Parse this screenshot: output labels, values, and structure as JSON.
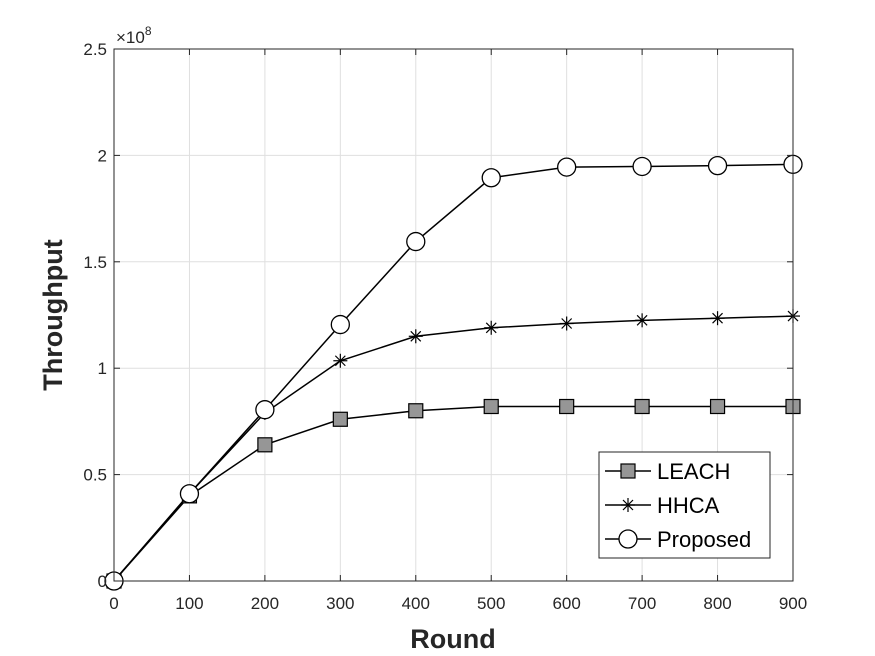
{
  "chart_data": {
    "type": "line",
    "title": "",
    "xlabel": "Round",
    "ylabel": "Throughput",
    "x": [
      0,
      100,
      200,
      300,
      400,
      500,
      600,
      700,
      800,
      900
    ],
    "xlim": [
      0,
      900
    ],
    "ylim": [
      0,
      2.5
    ],
    "y_multiplier_label": "×10",
    "y_multiplier_exp": "8",
    "x_ticks": [
      "0",
      "100",
      "200",
      "300",
      "400",
      "500",
      "600",
      "700",
      "800",
      "900"
    ],
    "y_ticks": [
      "0",
      "0.5",
      "1",
      "1.5",
      "2",
      "2.5"
    ],
    "y_tick_values": [
      0,
      0.5,
      1,
      1.5,
      2,
      2.5
    ],
    "grid": true,
    "legend_position": "bottom-right",
    "series": [
      {
        "name": "LEACH",
        "marker": "square",
        "values": [
          0,
          0.4,
          0.64,
          0.76,
          0.8,
          0.82,
          0.82,
          0.82,
          0.82,
          0.82
        ]
      },
      {
        "name": "HHCA",
        "marker": "asterisk",
        "values": [
          0,
          0.41,
          0.79,
          1.035,
          1.15,
          1.19,
          1.21,
          1.225,
          1.235,
          1.245
        ]
      },
      {
        "name": "Proposed",
        "marker": "circle",
        "values": [
          0,
          0.41,
          0.805,
          1.205,
          1.595,
          1.895,
          1.945,
          1.948,
          1.952,
          1.958
        ]
      }
    ],
    "colors": {
      "line": "#000000",
      "square_fill": "#969696",
      "circle_fill": "#ffffff",
      "grid": "#dfdfdf",
      "axis": "#262626"
    }
  }
}
